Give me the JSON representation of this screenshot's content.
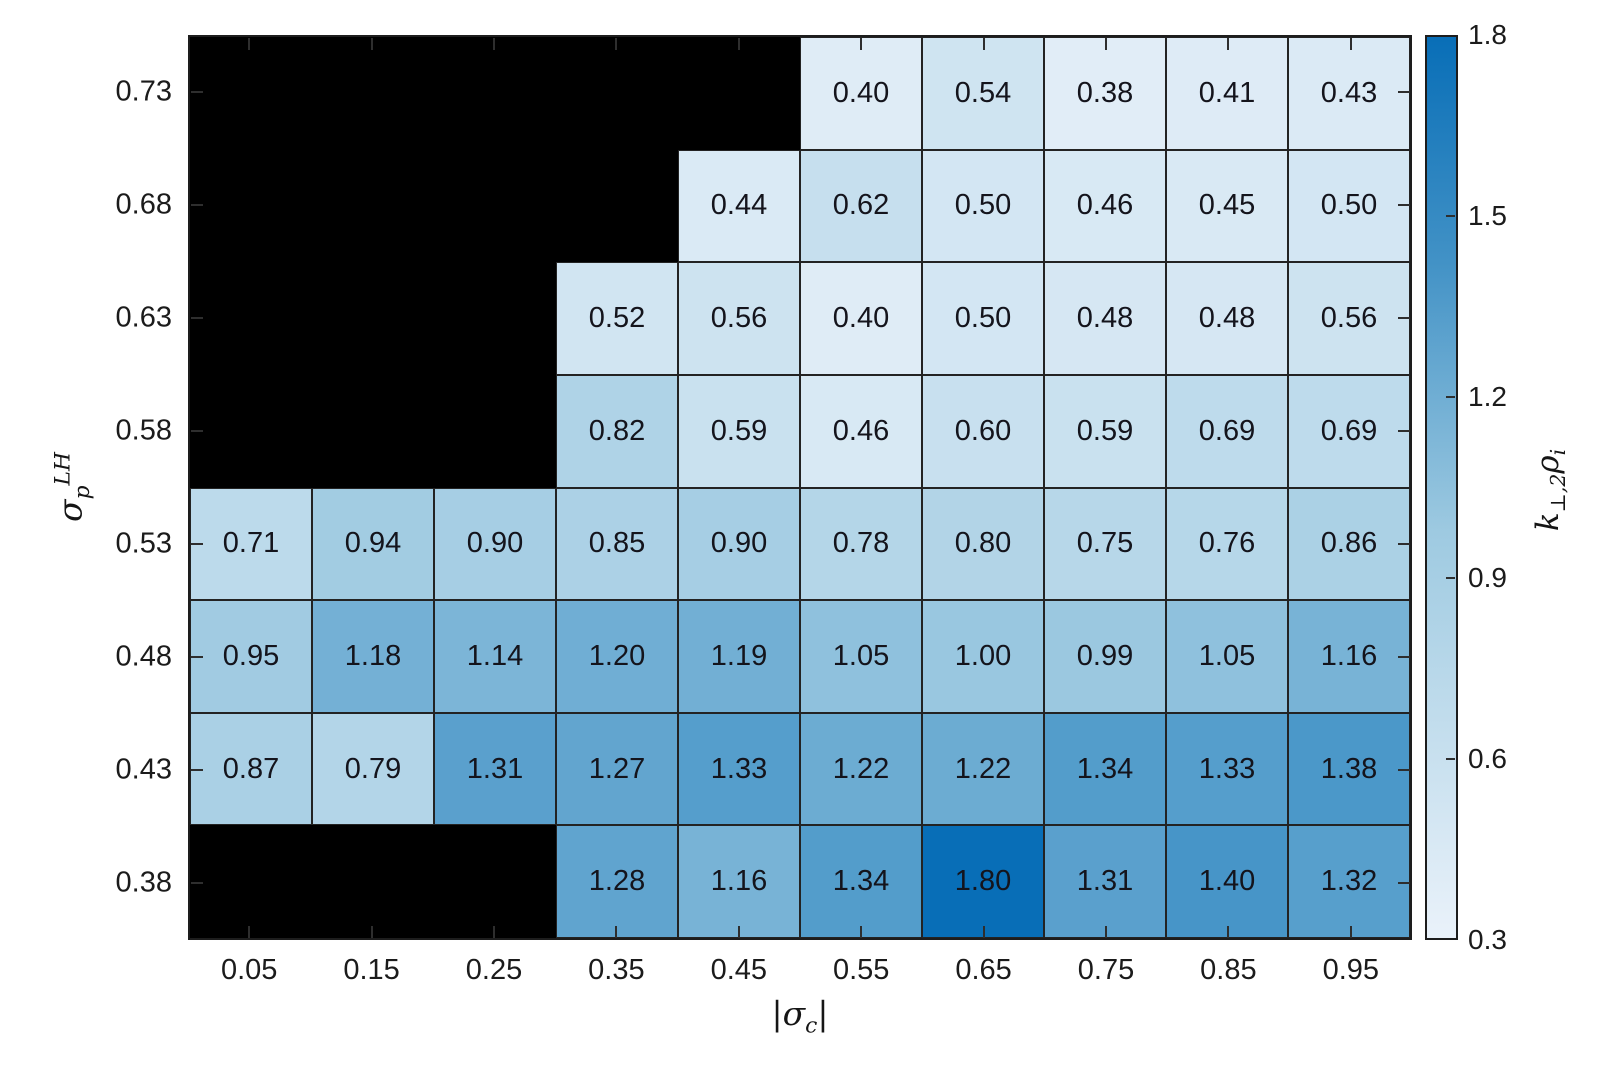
{
  "figure": {
    "background": "#FFFFFF"
  },
  "chart_data": {
    "type": "heatmap",
    "title": "",
    "xlabel": "|σ_{c}|",
    "ylabel": "σ_{p}^{LH}",
    "colorbar_label": "k_{⊥,2}ρ_{i}",
    "x_categories": [
      "0.05",
      "0.15",
      "0.25",
      "0.35",
      "0.45",
      "0.55",
      "0.65",
      "0.75",
      "0.85",
      "0.95"
    ],
    "y_categories": [
      "0.73",
      "0.68",
      "0.63",
      "0.58",
      "0.53",
      "0.48",
      "0.43",
      "0.38"
    ],
    "values": [
      [
        null,
        null,
        null,
        null,
        null,
        0.4,
        0.54,
        0.38,
        0.41,
        0.43
      ],
      [
        null,
        null,
        null,
        null,
        0.44,
        0.62,
        0.5,
        0.46,
        0.45,
        0.5
      ],
      [
        null,
        null,
        null,
        0.52,
        0.56,
        0.4,
        0.5,
        0.48,
        0.48,
        0.56
      ],
      [
        null,
        null,
        null,
        0.82,
        0.59,
        0.46,
        0.6,
        0.59,
        0.69,
        0.69
      ],
      [
        0.71,
        0.94,
        0.9,
        0.85,
        0.9,
        0.78,
        0.8,
        0.75,
        0.76,
        0.86
      ],
      [
        0.95,
        1.18,
        1.14,
        1.2,
        1.19,
        1.05,
        1.0,
        0.99,
        1.05,
        1.16
      ],
      [
        0.87,
        0.79,
        1.31,
        1.27,
        1.33,
        1.22,
        1.22,
        1.34,
        1.33,
        1.38
      ],
      [
        null,
        null,
        null,
        1.28,
        1.16,
        1.34,
        1.8,
        1.31,
        1.4,
        1.32
      ]
    ],
    "color_range": [
      0.3,
      1.8
    ],
    "colorbar_ticks": [
      "1.8",
      "1.5",
      "1.2",
      "0.9",
      "0.6",
      "0.3"
    ],
    "colormap": {
      "stops": [
        0,
        0.45,
        0.75,
        1
      ],
      "colors": [
        "#EAF2FA",
        "#9ECAE1",
        "#4292C6",
        "#086EB7"
      ],
      "missing_color": "#000000"
    },
    "grid": true,
    "legend_position": "colorbar-right"
  }
}
